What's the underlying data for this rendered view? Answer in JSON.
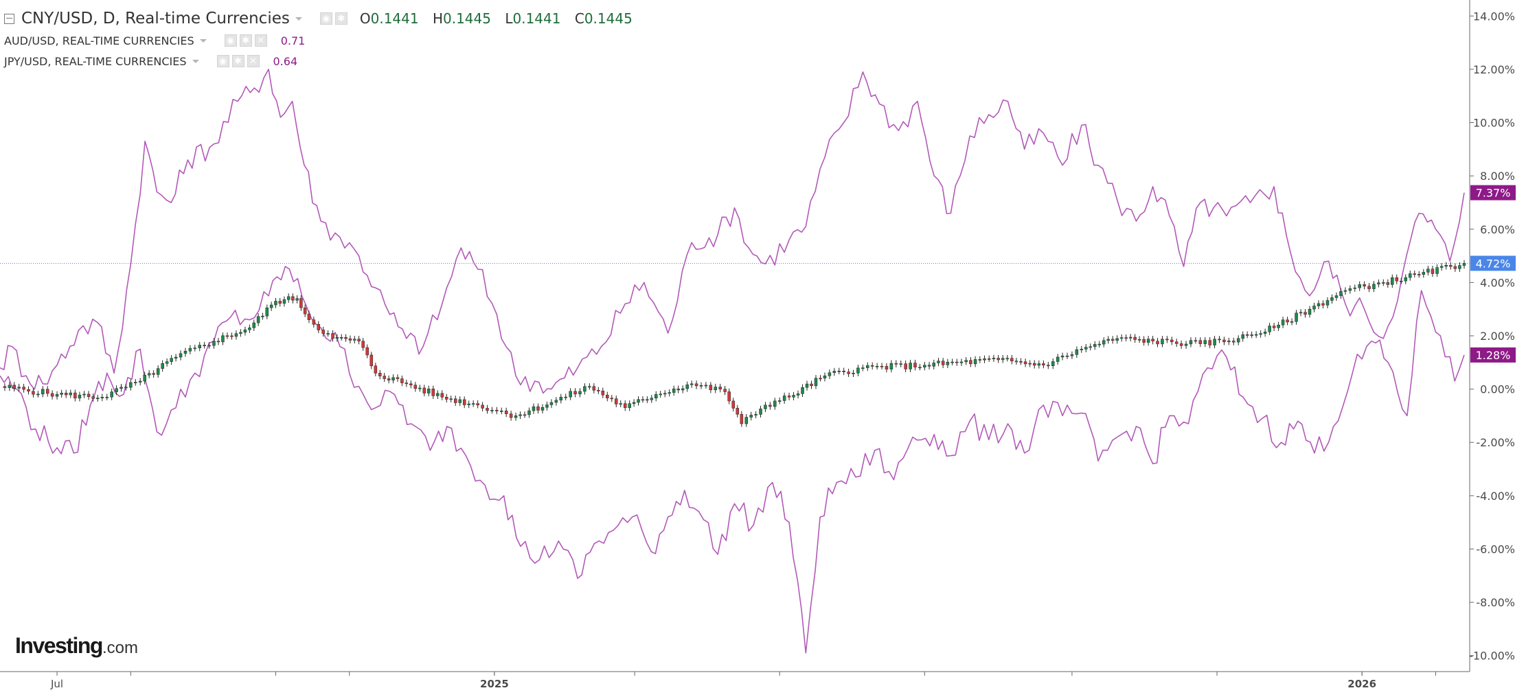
{
  "legend": {
    "main": {
      "title": "CNY/USD, D, Real-time Currencies",
      "open": "0.1441",
      "high": "0.1445",
      "low": "0.1441",
      "close": "0.1445"
    },
    "compare": [
      {
        "name": "AUD/USD, REAL-TIME CURRENCIES",
        "value": "0.71"
      },
      {
        "name": "JPY/USD, REAL-TIME CURRENCIES",
        "value": "0.64"
      }
    ],
    "icons": [
      "collapse-icon",
      "chevron-down-icon",
      "eye-icon",
      "gear-icon",
      "close-icon"
    ]
  },
  "logo": {
    "text": "Investing",
    "suffix": ".com"
  },
  "colors": {
    "compare_line": "#b259b8",
    "up_candle": "#1f8a4c",
    "down_candle": "#cf3a3a",
    "current_price": "#4a86e8",
    "compare_badge": "#8e1a88",
    "axis_text": "#4a4a4a",
    "axis_line": "#666666"
  },
  "chart_data": {
    "type": "line",
    "title": "CNY/USD, D, Real-time Currencies",
    "y_unit": "%",
    "ylim": [
      -10.6,
      14.6
    ],
    "y_ticks": [
      "14.00%",
      "12.00%",
      "10.00%",
      "8.00%",
      "6.00%",
      "4.00%",
      "2.00%",
      "0.00%",
      "-2.00%",
      "-4.00%",
      "-6.00%",
      "-8.00%",
      "-10.00%"
    ],
    "y_tick_values": [
      14,
      12,
      10,
      8,
      6,
      4,
      2,
      0,
      -2,
      -4,
      -6,
      -8,
      -10
    ],
    "x_labels": [
      "Jul",
      "2025",
      "2026"
    ],
    "x_label_dates": [
      "2024-07-01",
      "2025-01-01",
      "2026-01-01"
    ],
    "x_range": [
      "2024-06-07",
      "2026-02-13"
    ],
    "x_tick_dates": [
      "2024-08-01",
      "2024-10-01",
      "2024-11-01",
      "2025-01-01",
      "2025-03-01",
      "2025-05-01",
      "2025-07-01",
      "2025-09-01",
      "2025-11-01",
      "2026-01-01",
      "2026-02-01"
    ],
    "grid": false,
    "legend_position": "top-left",
    "current_badges": [
      {
        "label": "7.37%",
        "value": 7.37,
        "series": "AUD/USD"
      },
      {
        "label": "4.72%",
        "value": 4.72,
        "series": "CNY/USD"
      },
      {
        "label": "1.28%",
        "value": 1.28,
        "series": "JPY/USD"
      }
    ],
    "series": [
      {
        "name": "CNY/USD",
        "style": "candlestick",
        "points": [
          [
            "2024-06-07",
            0.1
          ],
          [
            "2024-07-01",
            -0.2
          ],
          [
            "2024-07-20",
            -0.3
          ],
          [
            "2024-08-05",
            0.3
          ],
          [
            "2024-08-20",
            1.2
          ],
          [
            "2024-09-05",
            1.8
          ],
          [
            "2024-09-20",
            2.3
          ],
          [
            "2024-10-01",
            3.3
          ],
          [
            "2024-10-10",
            3.4
          ],
          [
            "2024-10-15",
            2.6
          ],
          [
            "2024-10-25",
            1.9
          ],
          [
            "2024-11-05",
            1.8
          ],
          [
            "2024-11-12",
            0.6
          ],
          [
            "2024-11-25",
            0.2
          ],
          [
            "2024-12-10",
            -0.3
          ],
          [
            "2024-12-25",
            -0.6
          ],
          [
            "2025-01-10",
            -1.0
          ],
          [
            "2025-01-25",
            -0.5
          ],
          [
            "2025-02-10",
            0.1
          ],
          [
            "2025-02-25",
            -0.7
          ],
          [
            "2025-03-10",
            -0.2
          ],
          [
            "2025-03-25",
            0.2
          ],
          [
            "2025-04-08",
            -0.1
          ],
          [
            "2025-04-15",
            -1.3
          ],
          [
            "2025-04-25",
            -0.6
          ],
          [
            "2025-05-05",
            -0.3
          ],
          [
            "2025-05-20",
            0.5
          ],
          [
            "2025-06-05",
            0.8
          ],
          [
            "2025-07-01",
            0.9
          ],
          [
            "2025-08-01",
            1.1
          ],
          [
            "2025-08-20",
            0.9
          ],
          [
            "2025-09-05",
            1.5
          ],
          [
            "2025-09-20",
            1.9
          ],
          [
            "2025-10-05",
            1.8
          ],
          [
            "2025-10-25",
            1.7
          ],
          [
            "2025-11-10",
            1.9
          ],
          [
            "2025-11-25",
            2.3
          ],
          [
            "2025-12-10",
            3.0
          ],
          [
            "2025-12-25",
            3.7
          ],
          [
            "2026-01-10",
            4.0
          ],
          [
            "2026-01-25",
            4.3
          ],
          [
            "2026-02-13",
            4.72
          ]
        ]
      },
      {
        "name": "AUD/USD",
        "style": "line",
        "points": [
          [
            "2024-06-07",
            0.8
          ],
          [
            "2024-06-12",
            1.6
          ],
          [
            "2024-06-18",
            0.5
          ],
          [
            "2024-06-25",
            0.2
          ],
          [
            "2024-07-01",
            0.9
          ],
          [
            "2024-07-10",
            2.2
          ],
          [
            "2024-07-18",
            2.5
          ],
          [
            "2024-07-25",
            0.6
          ],
          [
            "2024-08-01",
            4.7
          ],
          [
            "2024-08-07",
            9.3
          ],
          [
            "2024-08-12",
            7.4
          ],
          [
            "2024-08-18",
            7.0
          ],
          [
            "2024-08-25",
            8.6
          ],
          [
            "2024-09-05",
            9.2
          ],
          [
            "2024-09-15",
            10.8
          ],
          [
            "2024-09-22",
            11.3
          ],
          [
            "2024-09-28",
            12.0
          ],
          [
            "2024-10-03",
            10.2
          ],
          [
            "2024-10-08",
            10.8
          ],
          [
            "2024-10-13",
            8.4
          ],
          [
            "2024-10-20",
            6.3
          ],
          [
            "2024-10-28",
            5.7
          ],
          [
            "2024-11-05",
            5.0
          ],
          [
            "2024-11-12",
            3.8
          ],
          [
            "2024-11-18",
            2.8
          ],
          [
            "2024-11-25",
            1.9
          ],
          [
            "2024-12-02",
            1.6
          ],
          [
            "2024-12-10",
            3.2
          ],
          [
            "2024-12-18",
            5.3
          ],
          [
            "2024-12-25",
            4.5
          ],
          [
            "2025-01-02",
            2.8
          ],
          [
            "2025-01-10",
            0.5
          ],
          [
            "2025-01-18",
            0.3
          ],
          [
            "2025-01-25",
            0.0
          ],
          [
            "2025-02-05",
            0.8
          ],
          [
            "2025-02-15",
            1.6
          ],
          [
            "2025-02-25",
            3.2
          ],
          [
            "2025-03-05",
            4.0
          ],
          [
            "2025-03-15",
            2.1
          ],
          [
            "2025-03-25",
            5.5
          ],
          [
            "2025-04-05",
            5.8
          ],
          [
            "2025-04-12",
            6.8
          ],
          [
            "2025-04-18",
            5.3
          ],
          [
            "2025-04-25",
            4.7
          ],
          [
            "2025-05-05",
            5.6
          ],
          [
            "2025-05-12",
            6.1
          ],
          [
            "2025-05-20",
            8.7
          ],
          [
            "2025-05-28",
            10.0
          ],
          [
            "2025-06-05",
            11.9
          ],
          [
            "2025-06-12",
            10.7
          ],
          [
            "2025-06-20",
            9.7
          ],
          [
            "2025-06-28",
            10.8
          ],
          [
            "2025-07-05",
            8.0
          ],
          [
            "2025-07-12",
            6.6
          ],
          [
            "2025-07-20",
            9.5
          ],
          [
            "2025-07-28",
            10.3
          ],
          [
            "2025-08-05",
            10.8
          ],
          [
            "2025-08-12",
            9.0
          ],
          [
            "2025-08-20",
            9.6
          ],
          [
            "2025-08-28",
            8.4
          ],
          [
            "2025-09-05",
            9.9
          ],
          [
            "2025-09-12",
            8.4
          ],
          [
            "2025-09-20",
            7.1
          ],
          [
            "2025-09-28",
            6.3
          ],
          [
            "2025-10-05",
            7.6
          ],
          [
            "2025-10-12",
            6.5
          ],
          [
            "2025-10-18",
            4.6
          ],
          [
            "2025-10-25",
            7.0
          ],
          [
            "2025-11-05",
            6.5
          ],
          [
            "2025-11-15",
            7.0
          ],
          [
            "2025-11-25",
            7.6
          ],
          [
            "2025-12-02",
            5.1
          ],
          [
            "2025-12-10",
            3.5
          ],
          [
            "2025-12-18",
            4.8
          ],
          [
            "2025-12-25",
            3.2
          ],
          [
            "2026-01-02",
            3.0
          ],
          [
            "2026-01-10",
            1.9
          ],
          [
            "2026-01-18",
            4.3
          ],
          [
            "2026-01-25",
            6.6
          ],
          [
            "2026-02-01",
            6.0
          ],
          [
            "2026-02-07",
            4.8
          ],
          [
            "2026-02-13",
            7.37
          ]
        ]
      },
      {
        "name": "JPY/USD",
        "style": "line",
        "points": [
          [
            "2024-06-07",
            0.5
          ],
          [
            "2024-06-14",
            0.0
          ],
          [
            "2024-06-22",
            -1.5
          ],
          [
            "2024-07-01",
            -2.2
          ],
          [
            "2024-07-08",
            -2.4
          ],
          [
            "2024-07-15",
            -0.6
          ],
          [
            "2024-07-22",
            0.6
          ],
          [
            "2024-07-29",
            -0.2
          ],
          [
            "2024-08-05",
            1.5
          ],
          [
            "2024-08-12",
            -1.6
          ],
          [
            "2024-08-20",
            -0.7
          ],
          [
            "2024-08-28",
            0.6
          ],
          [
            "2024-09-05",
            1.8
          ],
          [
            "2024-09-12",
            2.7
          ],
          [
            "2024-09-20",
            2.6
          ],
          [
            "2024-09-28",
            3.5
          ],
          [
            "2024-10-05",
            4.6
          ],
          [
            "2024-10-12",
            3.5
          ],
          [
            "2024-10-20",
            2.3
          ],
          [
            "2024-10-28",
            1.6
          ],
          [
            "2024-11-05",
            0.1
          ],
          [
            "2024-11-12",
            -0.7
          ],
          [
            "2024-11-20",
            -0.2
          ],
          [
            "2024-11-27",
            -1.3
          ],
          [
            "2024-12-05",
            -2.3
          ],
          [
            "2024-12-12",
            -1.4
          ],
          [
            "2024-12-20",
            -2.5
          ],
          [
            "2024-12-28",
            -3.6
          ],
          [
            "2025-01-05",
            -4.0
          ],
          [
            "2025-01-12",
            -5.9
          ],
          [
            "2025-01-20",
            -6.4
          ],
          [
            "2025-01-28",
            -5.7
          ],
          [
            "2025-02-05",
            -7.1
          ],
          [
            "2025-02-12",
            -5.8
          ],
          [
            "2025-02-20",
            -5.3
          ],
          [
            "2025-02-28",
            -4.8
          ],
          [
            "2025-03-08",
            -6.1
          ],
          [
            "2025-03-15",
            -4.8
          ],
          [
            "2025-03-22",
            -3.8
          ],
          [
            "2025-03-30",
            -4.9
          ],
          [
            "2025-04-05",
            -6.2
          ],
          [
            "2025-04-12",
            -4.3
          ],
          [
            "2025-04-20",
            -5.1
          ],
          [
            "2025-04-28",
            -3.5
          ],
          [
            "2025-05-05",
            -5.0
          ],
          [
            "2025-05-12",
            -9.9
          ],
          [
            "2025-05-18",
            -4.8
          ],
          [
            "2025-05-25",
            -3.5
          ],
          [
            "2025-06-02",
            -3.3
          ],
          [
            "2025-06-10",
            -2.3
          ],
          [
            "2025-06-18",
            -3.4
          ],
          [
            "2025-06-26",
            -1.8
          ],
          [
            "2025-07-05",
            -1.7
          ],
          [
            "2025-07-12",
            -2.5
          ],
          [
            "2025-07-20",
            -1.2
          ],
          [
            "2025-07-28",
            -1.9
          ],
          [
            "2025-08-05",
            -1.3
          ],
          [
            "2025-08-12",
            -2.4
          ],
          [
            "2025-08-20",
            -0.6
          ],
          [
            "2025-08-28",
            -1.0
          ],
          [
            "2025-09-05",
            -0.9
          ],
          [
            "2025-09-12",
            -2.7
          ],
          [
            "2025-09-20",
            -1.8
          ],
          [
            "2025-09-28",
            -1.4
          ],
          [
            "2025-10-05",
            -2.8
          ],
          [
            "2025-10-12",
            -1.0
          ],
          [
            "2025-10-20",
            -1.3
          ],
          [
            "2025-10-28",
            0.8
          ],
          [
            "2025-11-05",
            1.2
          ],
          [
            "2025-11-12",
            -0.3
          ],
          [
            "2025-11-20",
            -1.1
          ],
          [
            "2025-11-28",
            -2.0
          ],
          [
            "2025-12-05",
            -1.2
          ],
          [
            "2025-12-12",
            -2.4
          ],
          [
            "2025-12-20",
            -1.4
          ],
          [
            "2025-12-28",
            0.6
          ],
          [
            "2026-01-05",
            1.8
          ],
          [
            "2026-01-12",
            1.0
          ],
          [
            "2026-01-20",
            -1.0
          ],
          [
            "2026-01-26",
            3.7
          ],
          [
            "2026-02-03",
            2.0
          ],
          [
            "2026-02-09",
            0.3
          ],
          [
            "2026-02-13",
            1.28
          ]
        ]
      }
    ]
  }
}
